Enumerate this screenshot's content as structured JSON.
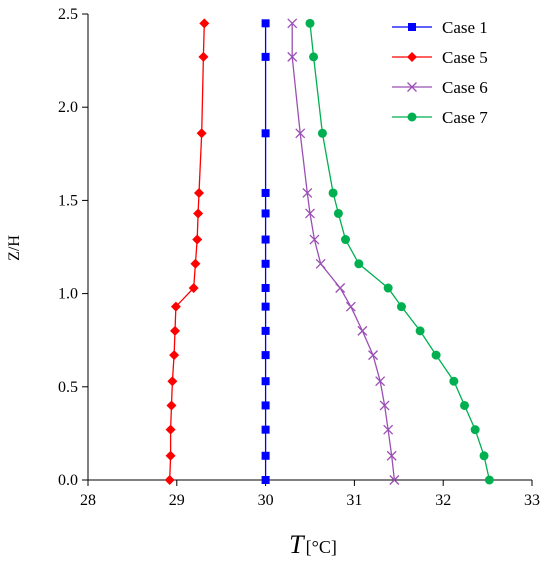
{
  "chart_data": {
    "type": "line",
    "xlabel": "T",
    "xlabel_unit": "[°C]",
    "ylabel": "Z/H",
    "xlim": [
      28,
      33
    ],
    "ylim": [
      0.0,
      2.5
    ],
    "x_ticks": [
      28,
      29,
      30,
      31,
      32,
      33
    ],
    "y_ticks": [
      0.0,
      0.5,
      1.0,
      1.5,
      2.0,
      2.5
    ],
    "x_tick_labels": [
      "28",
      "29",
      "30",
      "31",
      "32",
      "33"
    ],
    "y_tick_labels": [
      "0.0",
      "0.5",
      "1.0",
      "1.5",
      "2.0",
      "2.5"
    ],
    "grid": false,
    "legend_position": "top-right",
    "series": [
      {
        "name": "Case 1",
        "color": "#0000ff",
        "marker": "square",
        "points": [
          [
            30.0,
            0.0
          ],
          [
            30.0,
            0.13
          ],
          [
            30.0,
            0.27
          ],
          [
            30.0,
            0.4
          ],
          [
            30.0,
            0.53
          ],
          [
            30.0,
            0.67
          ],
          [
            30.0,
            0.8
          ],
          [
            30.0,
            0.93
          ],
          [
            30.0,
            1.03
          ],
          [
            30.0,
            1.16
          ],
          [
            30.0,
            1.29
          ],
          [
            30.0,
            1.43
          ],
          [
            30.0,
            1.54
          ],
          [
            30.0,
            1.86
          ],
          [
            30.0,
            2.27
          ],
          [
            30.0,
            2.45
          ]
        ]
      },
      {
        "name": "Case 5",
        "color": "#ff0000",
        "marker": "diamond",
        "points": [
          [
            28.92,
            0.0
          ],
          [
            28.93,
            0.13
          ],
          [
            28.93,
            0.27
          ],
          [
            28.94,
            0.4
          ],
          [
            28.95,
            0.53
          ],
          [
            28.97,
            0.67
          ],
          [
            28.98,
            0.8
          ],
          [
            28.99,
            0.93
          ],
          [
            29.19,
            1.03
          ],
          [
            29.21,
            1.16
          ],
          [
            29.23,
            1.29
          ],
          [
            29.24,
            1.43
          ],
          [
            29.25,
            1.54
          ],
          [
            29.28,
            1.86
          ],
          [
            29.3,
            2.27
          ],
          [
            29.31,
            2.45
          ]
        ]
      },
      {
        "name": "Case 6",
        "color": "#9b4fb4",
        "marker": "x",
        "points": [
          [
            31.45,
            0.0
          ],
          [
            31.42,
            0.13
          ],
          [
            31.38,
            0.27
          ],
          [
            31.34,
            0.4
          ],
          [
            31.29,
            0.53
          ],
          [
            31.21,
            0.67
          ],
          [
            31.09,
            0.8
          ],
          [
            30.96,
            0.93
          ],
          [
            30.84,
            1.03
          ],
          [
            30.62,
            1.16
          ],
          [
            30.55,
            1.29
          ],
          [
            30.5,
            1.43
          ],
          [
            30.47,
            1.54
          ],
          [
            30.39,
            1.86
          ],
          [
            30.3,
            2.27
          ],
          [
            30.3,
            2.45
          ]
        ]
      },
      {
        "name": "Case 7",
        "color": "#00b050",
        "marker": "circle",
        "points": [
          [
            32.52,
            0.0
          ],
          [
            32.46,
            0.13
          ],
          [
            32.36,
            0.27
          ],
          [
            32.24,
            0.4
          ],
          [
            32.12,
            0.53
          ],
          [
            31.92,
            0.67
          ],
          [
            31.74,
            0.8
          ],
          [
            31.53,
            0.93
          ],
          [
            31.38,
            1.03
          ],
          [
            31.05,
            1.16
          ],
          [
            30.9,
            1.29
          ],
          [
            30.82,
            1.43
          ],
          [
            30.76,
            1.54
          ],
          [
            30.64,
            1.86
          ],
          [
            30.54,
            2.27
          ],
          [
            30.5,
            2.45
          ]
        ]
      }
    ]
  }
}
